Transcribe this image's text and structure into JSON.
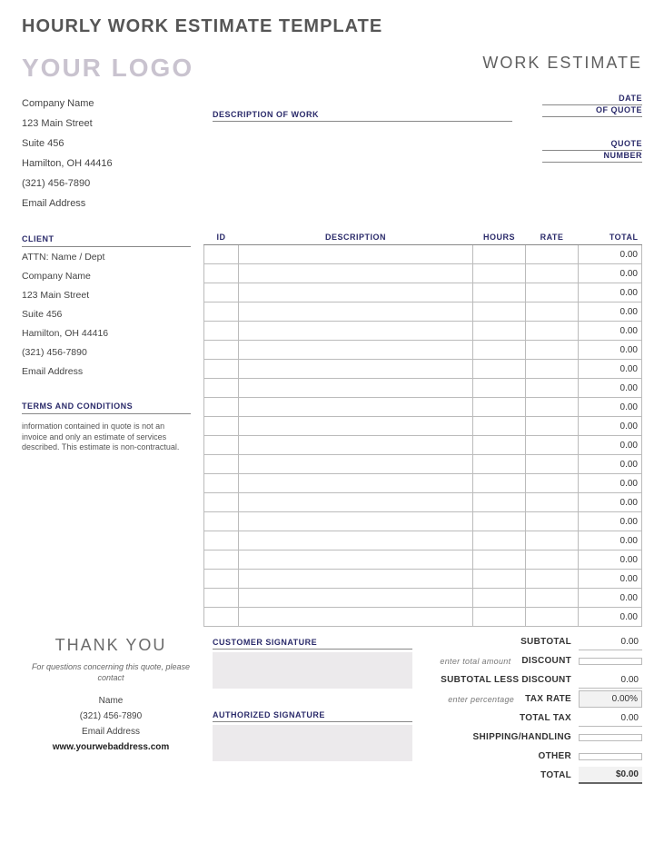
{
  "page_title": "HOURLY WORK ESTIMATE TEMPLATE",
  "logo_text": "YOUR LOGO",
  "header_right": "WORK ESTIMATE",
  "company": {
    "name": "Company Name",
    "street": "123 Main Street",
    "suite": "Suite 456",
    "city": "Hamilton, OH  44416",
    "phone": "(321) 456-7890",
    "email": "Email Address"
  },
  "desc_label": "DESCRIPTION OF WORK",
  "meta": {
    "date_label": "DATE",
    "of_quote_label": "OF QUOTE",
    "quote_label": "QUOTE",
    "number_label": "NUMBER"
  },
  "client_header": "CLIENT",
  "client": {
    "attn": "ATTN: Name / Dept",
    "company": "Company Name",
    "street": "123 Main Street",
    "suite": "Suite 456",
    "city": "Hamilton, OH  44416",
    "phone": "(321) 456-7890",
    "email": "Email Address"
  },
  "terms_header": "TERMS AND CONDITIONS",
  "terms_text": "information contained in quote is not an invoice and only an estimate of services described. This estimate is non-contractual.",
  "table": {
    "headers": {
      "id": "ID",
      "description": "DESCRIPTION",
      "hours": "HOURS",
      "rate": "RATE",
      "total": "TOTAL"
    },
    "row_total": "0.00",
    "row_count": 20
  },
  "totals": {
    "subtotal_label": "SUBTOTAL",
    "subtotal_val": "0.00",
    "discount_hint": "enter total amount",
    "discount_label": "DISCOUNT",
    "discount_val": "",
    "less_label": "SUBTOTAL LESS DISCOUNT",
    "less_val": "0.00",
    "taxrate_hint": "enter percentage",
    "taxrate_label": "TAX RATE",
    "taxrate_val": "0.00%",
    "totaltax_label": "TOTAL TAX",
    "totaltax_val": "0.00",
    "shipping_label": "SHIPPING/HANDLING",
    "shipping_val": "",
    "other_label": "OTHER",
    "other_val": "",
    "total_label": "TOTAL",
    "total_val": "$0.00"
  },
  "footer": {
    "thank_you": "THANK YOU",
    "note": "For questions concerning this quote, please contact",
    "contact_name": "Name",
    "contact_phone": "(321) 456-7890",
    "contact_email": "Email Address",
    "web": "www.yourwebaddress.com",
    "cust_sig": "CUSTOMER SIGNATURE",
    "auth_sig": "AUTHORIZED SIGNATURE"
  }
}
